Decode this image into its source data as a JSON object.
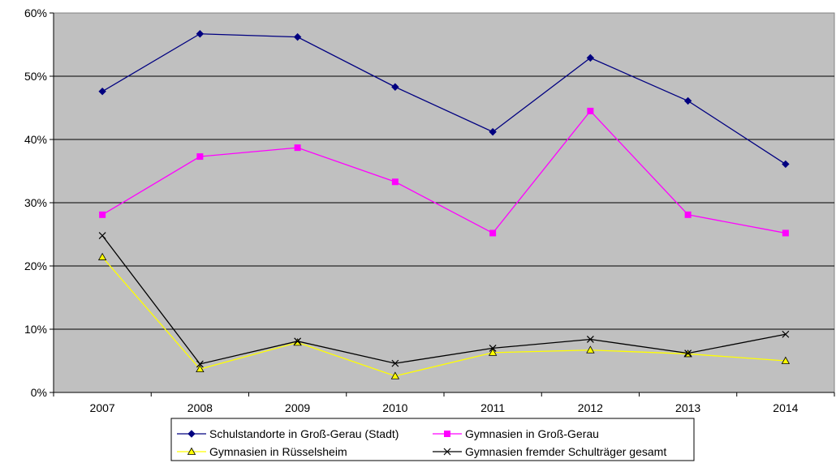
{
  "chart_data": {
    "type": "line",
    "title": "",
    "xlabel": "",
    "ylabel": "",
    "categories": [
      "2007",
      "2008",
      "2009",
      "2010",
      "2011",
      "2012",
      "2013",
      "2014"
    ],
    "ylim": [
      0,
      60
    ],
    "yticks": [
      0,
      10,
      20,
      30,
      40,
      50,
      60
    ],
    "ytick_labels": [
      "0%",
      "10%",
      "20%",
      "30%",
      "40%",
      "50%",
      "60%"
    ],
    "grid": true,
    "plot_background": "#c0c0c0",
    "legend_position": "bottom",
    "series": [
      {
        "name": "Schulstandorte in Groß-Gerau (Stadt)",
        "color": "#000080",
        "marker": "diamond",
        "values": [
          47.6,
          56.7,
          56.2,
          48.3,
          41.2,
          52.9,
          46.1,
          36.1
        ]
      },
      {
        "name": "Gymnasien in Groß-Gerau",
        "color": "#ff00ff",
        "marker": "square",
        "values": [
          28.1,
          37.3,
          38.7,
          33.3,
          25.2,
          44.5,
          28.1,
          25.2
        ]
      },
      {
        "name": "Gymnasien in Rüsselsheim",
        "color": "#ffff00",
        "marker": "triangle",
        "values": [
          21.4,
          3.7,
          7.9,
          2.6,
          6.3,
          6.7,
          6.1,
          5.0
        ]
      },
      {
        "name": "Gymnasien fremder Schulträger gesamt",
        "color": "#000000",
        "marker": "x",
        "values": [
          24.8,
          4.5,
          8.1,
          4.6,
          7.0,
          8.4,
          6.2,
          9.2
        ]
      }
    ]
  }
}
